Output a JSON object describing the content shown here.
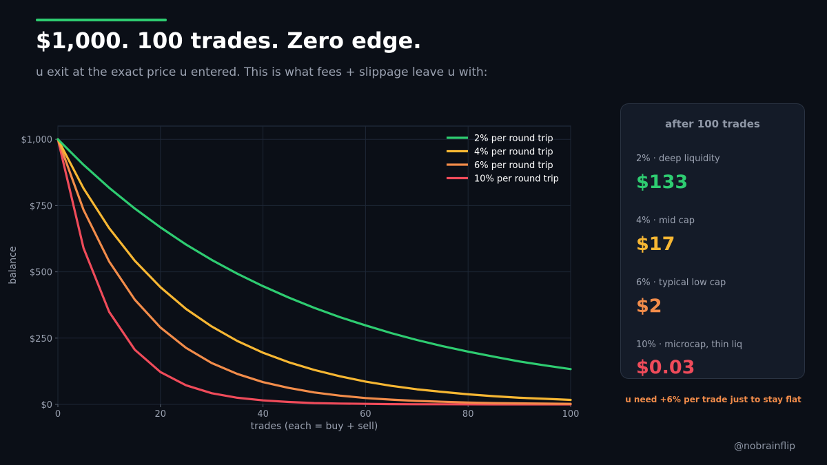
{
  "header": {
    "title": "$1,000. 100 trades. Zero edge.",
    "subtitle": "u exit at the exact price u entered. This is what fees + slippage leave u with:"
  },
  "colors": {
    "accent": "#2ecc71",
    "green": "#2ecc71",
    "yellow": "#f7b733",
    "orange": "#f28c4a",
    "red": "#ef4b5a",
    "background": "#0b0f17",
    "panel": "#141b28",
    "grid": "#1e2736",
    "text_muted": "#9aa1b0"
  },
  "chart_data": {
    "type": "line",
    "title": "",
    "xlabel": "trades (each = buy + sell)",
    "ylabel": "balance",
    "xlim": [
      0,
      100
    ],
    "ylim": [
      0,
      1050
    ],
    "xticks": [
      0,
      20,
      40,
      60,
      80,
      100
    ],
    "xtick_labels": [
      "0",
      "20",
      "40",
      "60",
      "80",
      "100"
    ],
    "yticks": [
      0,
      250,
      500,
      750,
      1000
    ],
    "ytick_labels": [
      "$0",
      "$250",
      "$500",
      "$750",
      "$1,000"
    ],
    "grid": true,
    "legend_position": "top-right",
    "x": [
      0,
      5,
      10,
      15,
      20,
      25,
      30,
      35,
      40,
      45,
      50,
      55,
      60,
      65,
      70,
      75,
      80,
      85,
      90,
      95,
      100
    ],
    "series": [
      {
        "name": "2% per round trip",
        "color": "#2ecc71",
        "values": [
          1000,
          904,
          817,
          739,
          668,
          603,
          545,
          493,
          446,
          403,
          364,
          329,
          298,
          269,
          243,
          220,
          199,
          180,
          162,
          147,
          133
        ]
      },
      {
        "name": "4% per round trip",
        "color": "#f7b733",
        "values": [
          1000,
          815,
          665,
          542,
          442,
          360,
          294,
          239,
          195,
          159,
          130,
          106,
          86,
          70,
          57,
          47,
          38,
          31,
          25,
          21,
          17
        ]
      },
      {
        "name": "6% per round trip",
        "color": "#f28c4a",
        "values": [
          1000,
          734,
          539,
          395,
          290,
          213,
          156,
          115,
          84,
          62,
          45,
          33,
          24,
          18,
          13,
          10,
          7,
          5,
          4,
          3,
          2
        ]
      },
      {
        "name": "10% per round trip",
        "color": "#ef4b5a",
        "values": [
          1000,
          590,
          349,
          206,
          122,
          72,
          42,
          25,
          15,
          9,
          5,
          3,
          2,
          1,
          0.6,
          0.4,
          0.2,
          0.1,
          0.08,
          0.05,
          0.03
        ]
      }
    ]
  },
  "panel": {
    "title": "after 100 trades",
    "rows": [
      {
        "label": "2%  ·  deep liquidity",
        "value": "$133",
        "color": "#2ecc71"
      },
      {
        "label": "4%  ·  mid cap",
        "value": "$17",
        "color": "#f7b733"
      },
      {
        "label": "6%  ·  typical low cap",
        "value": "$2",
        "color": "#f28c4a"
      },
      {
        "label": "10%  ·  microcap, thin liq",
        "value": "$0.03",
        "color": "#ef4b5a"
      }
    ]
  },
  "note": {
    "text": "u need +6% per trade just to stay flat",
    "color": "#f28c4a"
  },
  "footer": {
    "handle": "@nobrainflip"
  }
}
